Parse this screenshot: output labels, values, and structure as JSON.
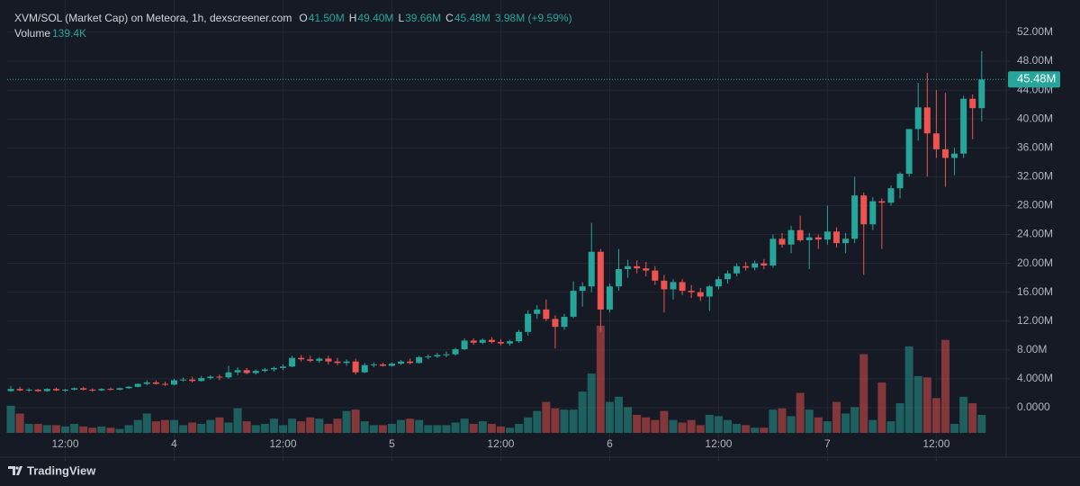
{
  "chart_data": {
    "type": "candlestick",
    "title": "XVM/SOL (Market Cap) on Meteora, 1h, dexscreener.com",
    "ohlc": [
      {
        "key": "O",
        "label": "41.50M"
      },
      {
        "key": "H",
        "label": "49.40M"
      },
      {
        "key": "L",
        "label": "39.66M"
      },
      {
        "key": "C",
        "label": "45.48M"
      }
    ],
    "change": "3.98M (+9.59%)",
    "up_color": "#26a69a",
    "down_color": "#ef5350",
    "open": [
      2.3,
      2.6,
      2.4,
      2.5,
      2.3,
      2.6,
      2.4,
      2.5,
      2.7,
      2.5,
      2.4,
      2.6,
      2.5,
      2.7,
      2.9,
      3.3,
      3.5,
      3.3,
      3.2,
      3.8,
      3.9,
      3.7,
      4.1,
      4.3,
      4.2,
      4.9,
      5.2,
      4.8,
      5.1,
      5.3,
      5.5,
      5.7,
      6.9,
      6.7,
      6.5,
      6.8,
      6.4,
      6.2,
      6.4,
      4.9,
      5.9,
      6.0,
      5.8,
      6.1,
      6.4,
      6.2,
      7.0,
      7.1,
      7.3,
      7.4,
      8.1,
      9.3,
      9.0,
      9.4,
      9.1,
      8.9,
      9.2,
      10.5,
      13.0,
      13.6,
      12.3,
      11.2,
      12.6,
      16.2,
      16.8,
      21.6,
      13.6,
      16.8,
      19.2,
      19.6,
      19.3,
      19.0,
      17.6,
      16.4,
      17.4,
      16.2,
      16.0,
      15.4,
      16.8,
      17.8,
      18.6,
      19.6,
      19.4,
      20.0,
      19.7,
      23.4,
      22.6,
      24.6,
      23.2,
      23.6,
      23.3,
      24.4,
      22.8,
      23.4,
      29.4,
      25.4,
      28.6,
      28.4,
      30.4,
      32.4,
      38.6,
      41.6,
      38.0,
      35.8,
      34.6,
      35.2,
      42.8,
      41.5
    ],
    "high": [
      3.0,
      2.9,
      2.7,
      2.6,
      2.7,
      2.8,
      2.6,
      2.8,
      2.9,
      2.7,
      2.7,
      2.8,
      2.8,
      3.0,
      3.4,
      3.8,
      3.8,
      3.6,
      4.0,
      4.2,
      4.3,
      4.4,
      4.5,
      4.6,
      5.8,
      5.6,
      5.5,
      5.3,
      5.5,
      5.7,
      6.0,
      7.2,
      7.3,
      7.2,
      7.0,
      7.2,
      6.9,
      6.7,
      6.8,
      6.2,
      6.3,
      6.2,
      6.3,
      6.6,
      6.8,
      7.2,
      7.4,
      7.6,
      7.8,
      8.3,
      9.6,
      9.6,
      9.6,
      9.8,
      9.5,
      9.4,
      10.8,
      13.5,
      14.2,
      15.0,
      12.8,
      13.0,
      17.5,
      17.4,
      25.6,
      22.0,
      17.2,
      22.0,
      20.5,
      20.4,
      20.2,
      19.6,
      18.4,
      17.8,
      17.8,
      17.0,
      16.6,
      17.0,
      18.2,
      19.0,
      20.0,
      20.2,
      20.4,
      20.6,
      24.0,
      24.2,
      25.2,
      26.6,
      24.2,
      24.0,
      28.0,
      25.0,
      24.2,
      32.0,
      29.8,
      29.2,
      29.0,
      30.8,
      32.6,
      38.6,
      45.0,
      46.4,
      44.0,
      43.6,
      36.0,
      43.2,
      43.4,
      49.4
    ],
    "low": [
      2.2,
      2.3,
      2.2,
      2.2,
      2.2,
      2.3,
      2.2,
      2.4,
      2.4,
      2.2,
      2.3,
      2.4,
      2.4,
      2.6,
      2.8,
      3.1,
      3.2,
      3.0,
      3.1,
      3.6,
      3.5,
      3.6,
      3.9,
      3.8,
      4.0,
      4.5,
      4.6,
      4.6,
      4.9,
      5.0,
      5.2,
      5.6,
      6.4,
      6.3,
      6.2,
      6.0,
      5.9,
      5.8,
      4.6,
      4.8,
      5.6,
      5.7,
      5.7,
      5.9,
      6.0,
      6.1,
      6.7,
      6.9,
      7.0,
      7.2,
      8.0,
      8.7,
      8.8,
      8.9,
      8.6,
      8.6,
      9.0,
      10.0,
      12.3,
      12.0,
      8.2,
      10.8,
      12.4,
      14.0,
      16.0,
      10.5,
      13.2,
      16.2,
      18.0,
      18.6,
      18.2,
      17.0,
      13.2,
      15.0,
      15.6,
      15.2,
      14.8,
      13.4,
      16.4,
      17.2,
      18.2,
      19.0,
      19.0,
      19.2,
      19.4,
      22.2,
      21.4,
      23.0,
      19.2,
      22.0,
      22.6,
      22.2,
      21.4,
      22.8,
      18.4,
      24.6,
      22.0,
      28.0,
      29.0,
      32.0,
      37.0,
      32.0,
      34.6,
      30.6,
      32.2,
      34.6,
      37.2,
      39.66
    ],
    "close": [
      2.6,
      2.4,
      2.5,
      2.3,
      2.6,
      2.4,
      2.5,
      2.7,
      2.5,
      2.4,
      2.6,
      2.5,
      2.7,
      2.9,
      3.3,
      3.5,
      3.3,
      3.2,
      3.8,
      3.9,
      3.7,
      4.1,
      4.3,
      4.2,
      4.9,
      5.2,
      4.8,
      5.1,
      5.3,
      5.5,
      5.7,
      6.9,
      6.7,
      6.5,
      6.8,
      6.4,
      6.2,
      6.4,
      4.9,
      5.9,
      6.0,
      5.8,
      6.1,
      6.4,
      6.2,
      7.0,
      7.1,
      7.3,
      7.4,
      8.1,
      9.3,
      9.0,
      9.4,
      9.1,
      8.9,
      9.2,
      10.5,
      13.0,
      13.6,
      12.3,
      11.2,
      12.6,
      16.2,
      16.8,
      21.6,
      13.6,
      16.8,
      19.2,
      19.6,
      19.3,
      19.0,
      17.6,
      16.4,
      17.4,
      16.2,
      16.0,
      15.4,
      16.8,
      17.8,
      18.6,
      19.6,
      19.4,
      20.0,
      19.7,
      23.4,
      22.6,
      24.6,
      23.2,
      23.6,
      23.3,
      24.4,
      22.8,
      23.4,
      29.4,
      25.4,
      28.6,
      28.4,
      30.4,
      32.4,
      38.6,
      41.6,
      38.0,
      35.8,
      34.6,
      35.2,
      42.8,
      41.5,
      45.48
    ],
    "volume": {
      "name": "Volume",
      "last_label": "139.4K",
      "values": [
        210,
        150,
        70,
        70,
        60,
        60,
        50,
        70,
        50,
        40,
        50,
        40,
        30,
        60,
        100,
        150,
        90,
        100,
        100,
        60,
        80,
        70,
        100,
        120,
        80,
        190,
        90,
        60,
        70,
        110,
        60,
        110,
        90,
        120,
        110,
        70,
        110,
        170,
        180,
        90,
        60,
        60,
        70,
        100,
        110,
        100,
        60,
        60,
        60,
        80,
        110,
        70,
        90,
        70,
        50,
        40,
        70,
        120,
        170,
        240,
        190,
        180,
        180,
        320,
        460,
        830,
        240,
        280,
        200,
        140,
        120,
        100,
        170,
        100,
        80,
        100,
        60,
        140,
        130,
        100,
        70,
        60,
        40,
        40,
        180,
        190,
        130,
        310,
        180,
        120,
        90,
        240,
        150,
        200,
        610,
        100,
        390,
        90,
        230,
        670,
        440,
        430,
        270,
        720,
        70,
        280,
        230,
        139.4
      ]
    },
    "last_price": {
      "value": 45.48,
      "label": "45.48M"
    },
    "xlim": [
      -0.4,
      109.7
    ],
    "xticks": [
      {
        "value": 6,
        "label": "12:00"
      },
      {
        "value": 18,
        "label": "4"
      },
      {
        "value": 30,
        "label": "12:00"
      },
      {
        "value": 42,
        "label": "5"
      },
      {
        "value": 54,
        "label": "12:00"
      },
      {
        "value": 66,
        "label": "6"
      },
      {
        "value": 78,
        "label": "12:00"
      },
      {
        "value": 90,
        "label": "7"
      },
      {
        "value": 102,
        "label": "12:00"
      }
    ],
    "ylim": [
      -3.49,
      56.48
    ],
    "yticks": [
      {
        "value": 0,
        "label": "0.0000"
      },
      {
        "value": 4,
        "label": "4.000M"
      },
      {
        "value": 8,
        "label": "8.00M"
      },
      {
        "value": 12,
        "label": "12.00M"
      },
      {
        "value": 16,
        "label": "16.00M"
      },
      {
        "value": 20,
        "label": "20.00M"
      },
      {
        "value": 24,
        "label": "24.00M"
      },
      {
        "value": 28,
        "label": "28.00M"
      },
      {
        "value": 32,
        "label": "32.00M"
      },
      {
        "value": 36,
        "label": "36.00M"
      },
      {
        "value": 40,
        "label": "40.00M"
      },
      {
        "value": 44,
        "label": "44.00M"
      },
      {
        "value": 48,
        "label": "48.00M"
      },
      {
        "value": 52,
        "label": "52.00M"
      }
    ],
    "grid": true,
    "brand": "TradingView"
  }
}
